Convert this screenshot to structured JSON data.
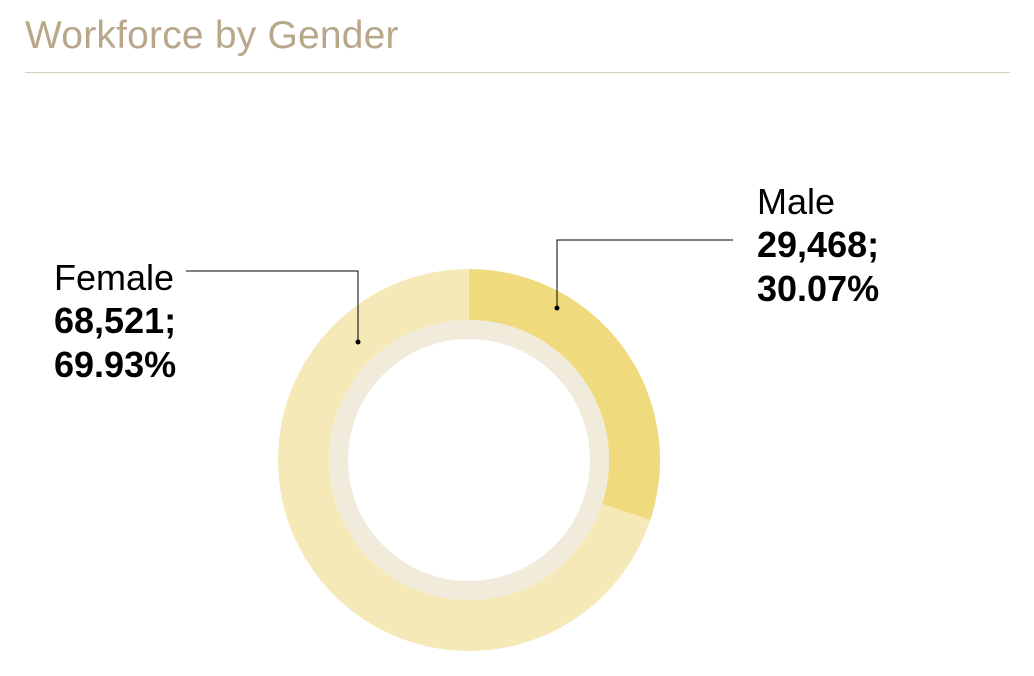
{
  "chart_data": {
    "type": "pie",
    "title": "Workforce by Gender",
    "categories": [
      "Female",
      "Male"
    ],
    "values": [
      68521,
      29468
    ],
    "percentages": [
      "69.93%",
      "30.07%"
    ],
    "value_labels": [
      "68,521;",
      "29,468;"
    ],
    "colors": [
      "#f5e9b8",
      "#f0da7e"
    ],
    "inner_ring_color": "#f1ebdc",
    "title_color": "#b9a78c",
    "legend": "none"
  }
}
